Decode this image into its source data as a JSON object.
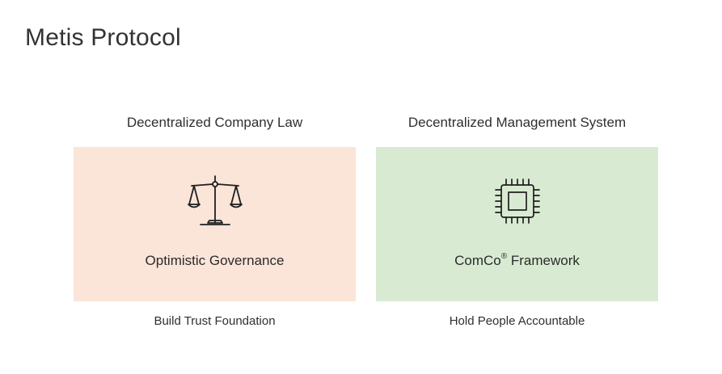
{
  "page_title": "Metis Protocol",
  "columns": [
    {
      "heading": "Decentralized Company Law",
      "card": {
        "label": "Optimistic Governance",
        "icon": "scales-icon",
        "background": "#fbe4d8"
      },
      "caption": "Build Trust Foundation"
    },
    {
      "heading": "Decentralized Management System",
      "card": {
        "label_main": "ComCo",
        "label_sup": "®",
        "label_rest": " Framework",
        "icon": "cpu-chip-icon",
        "background": "#d8ebd2"
      },
      "caption": "Hold People Accountable"
    }
  ]
}
